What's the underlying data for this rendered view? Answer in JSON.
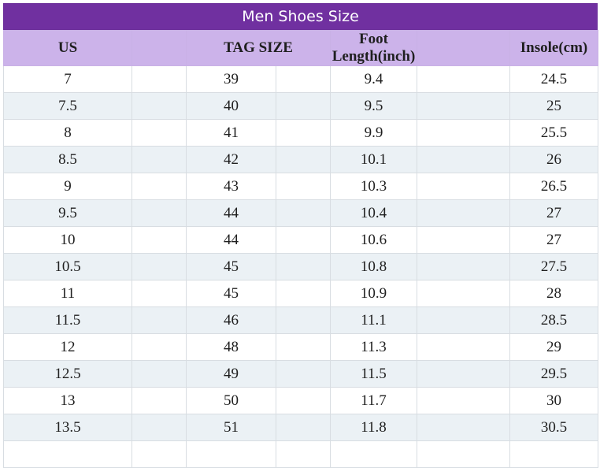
{
  "title": "Men Shoes Size",
  "headers": {
    "us": "US",
    "tag": "TAG SIZE",
    "foot": "Foot Length(inch)",
    "insole": "Insole(cm)"
  },
  "rows": [
    {
      "us": "7",
      "tag": "39",
      "foot": "9.4",
      "insole": "24.5"
    },
    {
      "us": "7.5",
      "tag": "40",
      "foot": "9.5",
      "insole": "25"
    },
    {
      "us": "8",
      "tag": "41",
      "foot": "9.9",
      "insole": "25.5"
    },
    {
      "us": "8.5",
      "tag": "42",
      "foot": "10.1",
      "insole": "26"
    },
    {
      "us": "9",
      "tag": "43",
      "foot": "10.3",
      "insole": "26.5"
    },
    {
      "us": "9.5",
      "tag": "44",
      "foot": "10.4",
      "insole": "27"
    },
    {
      "us": "10",
      "tag": "44",
      "foot": "10.6",
      "insole": "27"
    },
    {
      "us": "10.5",
      "tag": "45",
      "foot": "10.8",
      "insole": "27.5"
    },
    {
      "us": "11",
      "tag": "45",
      "foot": "10.9",
      "insole": "28"
    },
    {
      "us": "11.5",
      "tag": "46",
      "foot": "11.1",
      "insole": "28.5"
    },
    {
      "us": "12",
      "tag": "48",
      "foot": "11.3",
      "insole": "29"
    },
    {
      "us": "12.5",
      "tag": "49",
      "foot": "11.5",
      "insole": "29.5"
    },
    {
      "us": "13",
      "tag": "50",
      "foot": "11.7",
      "insole": "30"
    },
    {
      "us": "13.5",
      "tag": "51",
      "foot": "11.8",
      "insole": "30.5"
    },
    {
      "us": "",
      "tag": "",
      "foot": "",
      "insole": ""
    }
  ],
  "colors": {
    "title_bg": "#7030a0",
    "header_bg": "#ccb3ea",
    "stripe_bg": "#ebf1f5"
  }
}
